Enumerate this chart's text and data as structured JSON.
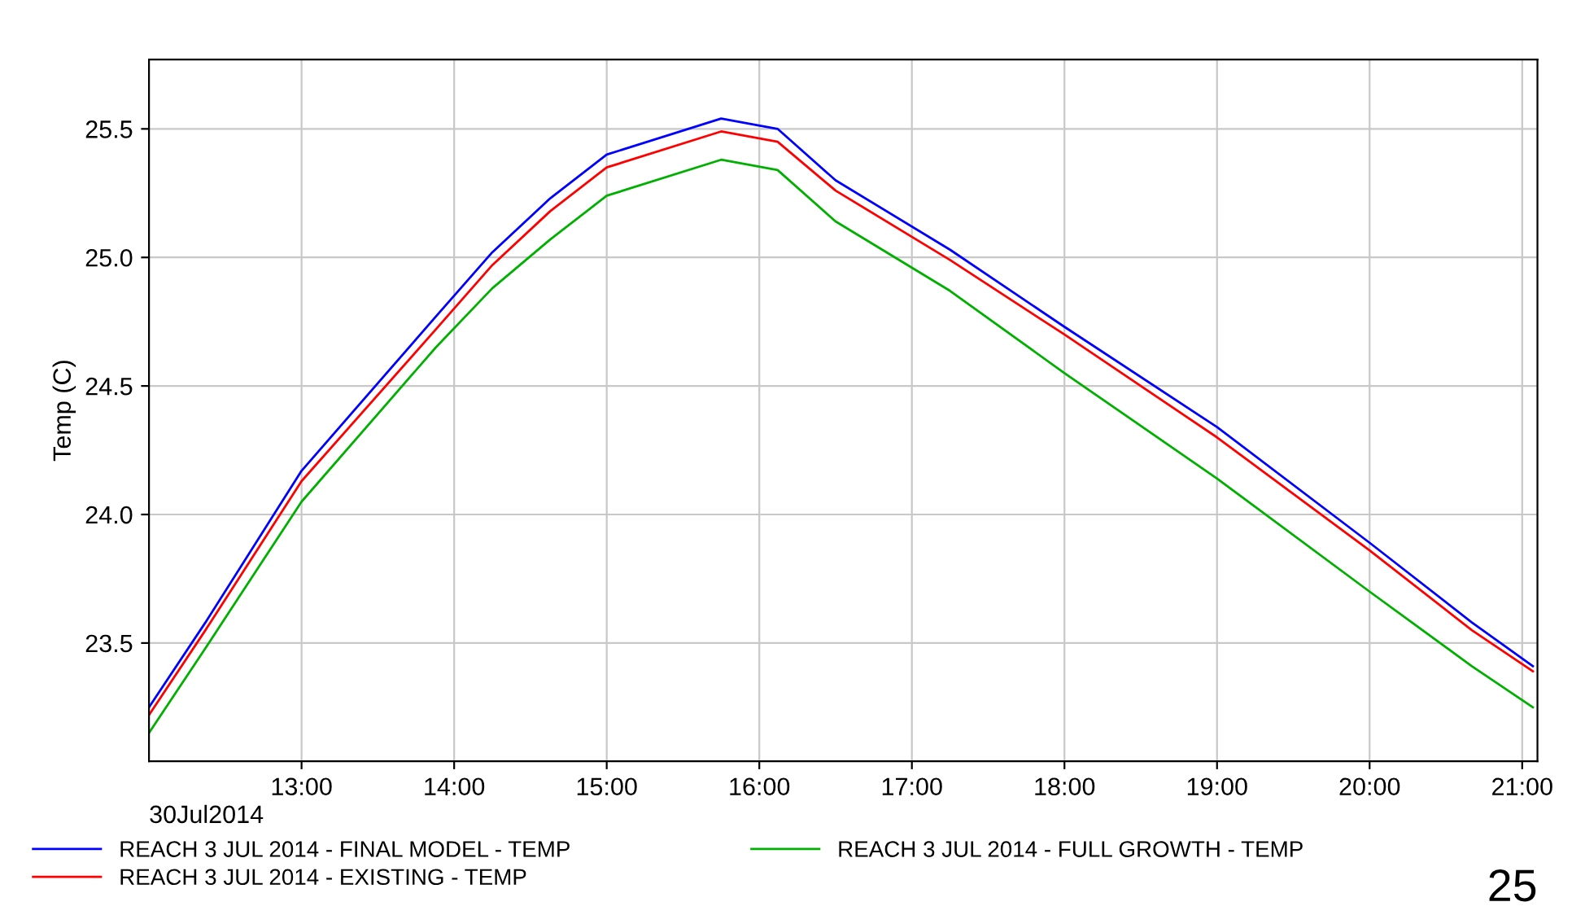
{
  "chart_data": {
    "type": "line",
    "ylabel": "Temp (C)",
    "x": [
      12.0,
      12.37,
      13.0,
      13.88,
      14.25,
      14.63,
      15.0,
      15.75,
      16.12,
      16.5,
      17.25,
      18.0,
      19.0,
      20.0,
      20.67,
      21.07
    ],
    "series": [
      {
        "name": "REACH 3 JUL 2014 - FINAL MODEL - TEMP",
        "color": "#0000ff",
        "values": [
          23.25,
          23.58,
          24.17,
          24.77,
          25.02,
          25.23,
          25.4,
          25.54,
          25.5,
          25.3,
          25.03,
          24.73,
          24.34,
          23.89,
          23.58,
          23.41
        ]
      },
      {
        "name": "REACH 3 JUL 2014 - EXISTING - TEMP",
        "color": "#ff0000",
        "values": [
          23.22,
          23.55,
          24.13,
          24.72,
          24.97,
          25.18,
          25.35,
          25.49,
          25.45,
          25.26,
          24.99,
          24.7,
          24.3,
          23.86,
          23.55,
          23.39
        ]
      },
      {
        "name": "REACH 3 JUL 2014 - FULL GROWTH - TEMP",
        "color": "#00b000",
        "values": [
          23.15,
          23.48,
          24.05,
          24.65,
          24.88,
          25.07,
          25.24,
          25.38,
          25.34,
          25.14,
          24.87,
          24.55,
          24.14,
          23.7,
          23.41,
          23.25
        ]
      }
    ],
    "xlim": [
      12.0,
      21.1
    ],
    "xticks": [
      {
        "value": 13,
        "label": "13:00"
      },
      {
        "value": 14,
        "label": "14:00"
      },
      {
        "value": 15,
        "label": "15:00"
      },
      {
        "value": 16,
        "label": "16:00"
      },
      {
        "value": 17,
        "label": "17:00"
      },
      {
        "value": 18,
        "label": "18:00"
      },
      {
        "value": 19,
        "label": "19:00"
      },
      {
        "value": 20,
        "label": "20:00"
      },
      {
        "value": 21,
        "label": "21:00"
      }
    ],
    "ylim": [
      23.04,
      25.77
    ],
    "yticks": [
      {
        "value": 23.5,
        "label": "23.5"
      },
      {
        "value": 24.0,
        "label": "24.0"
      },
      {
        "value": 24.5,
        "label": "24.5"
      },
      {
        "value": 25.0,
        "label": "25.0"
      },
      {
        "value": 25.5,
        "label": "25.5"
      }
    ],
    "grid": true,
    "legend": "bottom",
    "marker": "none",
    "line_style": "solid",
    "annotations": [
      "30Jul2014",
      "25"
    ]
  }
}
